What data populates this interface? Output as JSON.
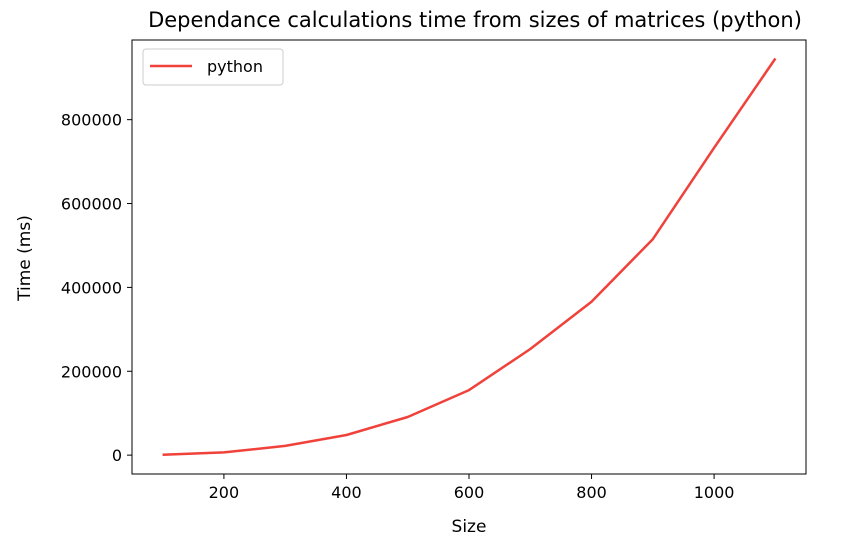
{
  "chart_data": {
    "type": "line",
    "title": "Dependance calculations time from sizes of matrices (python)",
    "xlabel": "Size",
    "ylabel": "Time (ms)",
    "xlim": [
      50,
      1150
    ],
    "ylim": [
      -45000,
      990000
    ],
    "x_ticks": [
      200,
      400,
      600,
      800,
      1000
    ],
    "x_tick_labels": [
      "200",
      "400",
      "600",
      "800",
      "1000"
    ],
    "y_ticks": [
      0,
      200000,
      400000,
      600000,
      800000
    ],
    "y_tick_labels": [
      "0",
      "200000",
      "400000",
      "600000",
      "800000"
    ],
    "grid": false,
    "legend_position": "upper-left",
    "series": [
      {
        "name": "python",
        "color": "#f0413a",
        "x": [
          100,
          200,
          300,
          400,
          500,
          600,
          700,
          800,
          900,
          1000,
          1100
        ],
        "y": [
          1000,
          6500,
          22000,
          48000,
          91000,
          155000,
          253000,
          366000,
          515000,
          733000,
          946000
        ]
      }
    ]
  }
}
